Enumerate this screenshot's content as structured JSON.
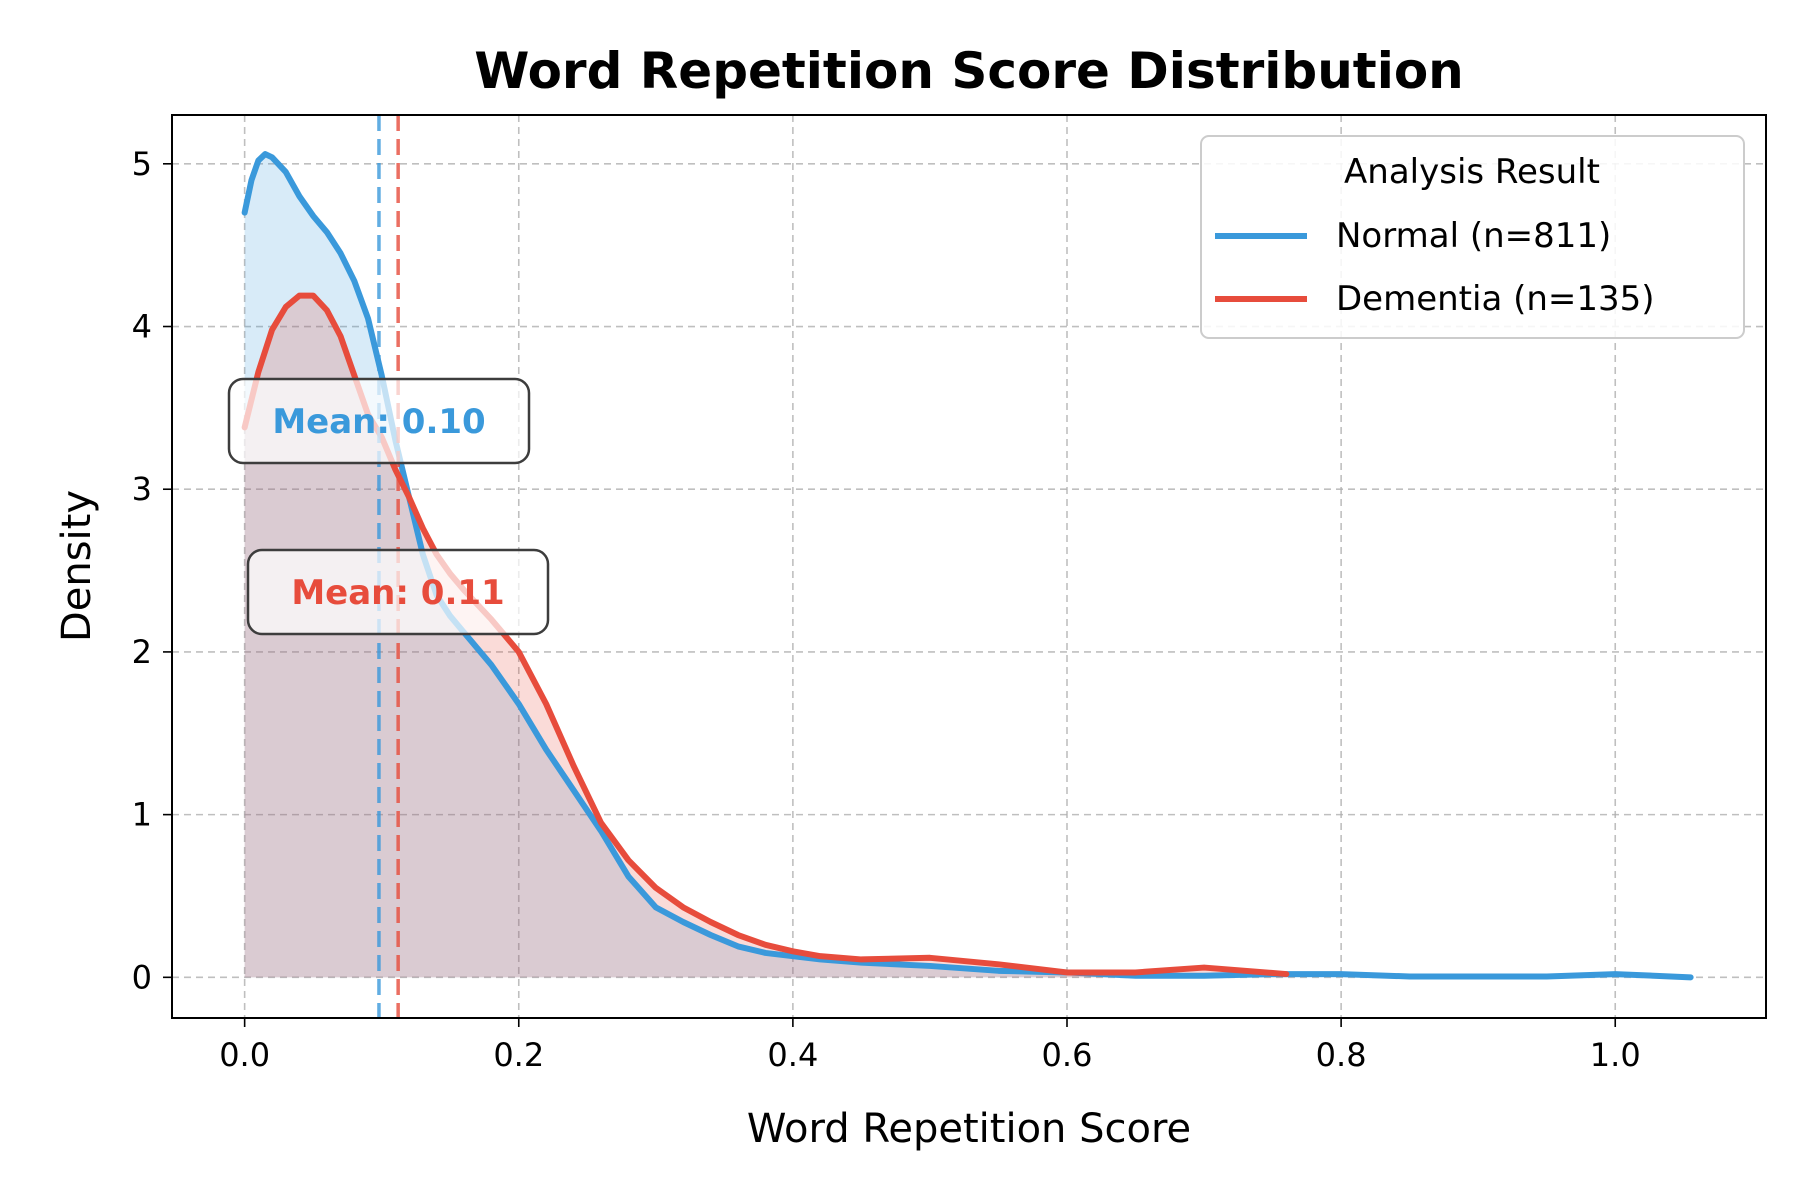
{
  "chart_data": {
    "type": "area",
    "title": "Word Repetition Score Distribution",
    "xlabel": "Word Repetition Score",
    "ylabel": "Density",
    "xlim": [
      -0.053,
      1.11
    ],
    "ylim": [
      -0.25,
      5.3
    ],
    "xticks": [
      0.0,
      0.2,
      0.4,
      0.6,
      0.8,
      1.0
    ],
    "xtick_labels": [
      "0.0",
      "0.2",
      "0.4",
      "0.6",
      "0.8",
      "1.0"
    ],
    "yticks": [
      0,
      1,
      2,
      3,
      4,
      5
    ],
    "ytick_labels": [
      "0",
      "1",
      "2",
      "3",
      "4",
      "5"
    ],
    "grid": true,
    "legend": {
      "title": "Analysis Result",
      "placement": "top-right"
    },
    "series": [
      {
        "name": "Normal (n=811)",
        "color": "#3a99db",
        "mean": 0.098,
        "mean_label": "Mean: 0.10",
        "x": [
          0.0,
          0.005,
          0.01,
          0.015,
          0.02,
          0.03,
          0.04,
          0.05,
          0.06,
          0.07,
          0.08,
          0.09,
          0.1,
          0.11,
          0.12,
          0.13,
          0.14,
          0.15,
          0.16,
          0.18,
          0.2,
          0.22,
          0.24,
          0.26,
          0.28,
          0.3,
          0.32,
          0.34,
          0.36,
          0.38,
          0.4,
          0.42,
          0.45,
          0.5,
          0.55,
          0.6,
          0.65,
          0.7,
          0.75,
          0.8,
          0.85,
          0.9,
          0.95,
          1.0,
          1.055
        ],
        "y": [
          4.7,
          4.9,
          5.02,
          5.06,
          5.04,
          4.95,
          4.8,
          4.68,
          4.58,
          4.45,
          4.28,
          4.05,
          3.7,
          3.3,
          2.95,
          2.6,
          2.35,
          2.22,
          2.12,
          1.92,
          1.68,
          1.4,
          1.15,
          0.9,
          0.62,
          0.43,
          0.34,
          0.26,
          0.19,
          0.15,
          0.13,
          0.11,
          0.09,
          0.07,
          0.04,
          0.03,
          0.01,
          0.01,
          0.02,
          0.02,
          0.005,
          0.005,
          0.005,
          0.02,
          0.0
        ]
      },
      {
        "name": "Dementia (n=135)",
        "color": "#e74c3c",
        "mean": 0.112,
        "mean_label": "Mean: 0.11",
        "x": [
          0.0,
          0.01,
          0.02,
          0.03,
          0.04,
          0.05,
          0.06,
          0.07,
          0.08,
          0.09,
          0.1,
          0.11,
          0.12,
          0.13,
          0.14,
          0.15,
          0.16,
          0.18,
          0.2,
          0.22,
          0.24,
          0.26,
          0.28,
          0.3,
          0.32,
          0.34,
          0.36,
          0.38,
          0.4,
          0.42,
          0.45,
          0.5,
          0.55,
          0.6,
          0.65,
          0.7,
          0.76
        ],
        "y": [
          3.38,
          3.72,
          3.98,
          4.12,
          4.19,
          4.19,
          4.1,
          3.94,
          3.7,
          3.46,
          3.32,
          3.12,
          2.95,
          2.76,
          2.6,
          2.48,
          2.38,
          2.2,
          2.0,
          1.68,
          1.3,
          0.95,
          0.72,
          0.55,
          0.43,
          0.34,
          0.26,
          0.2,
          0.16,
          0.13,
          0.11,
          0.12,
          0.08,
          0.03,
          0.03,
          0.06,
          0.02
        ]
      }
    ]
  }
}
